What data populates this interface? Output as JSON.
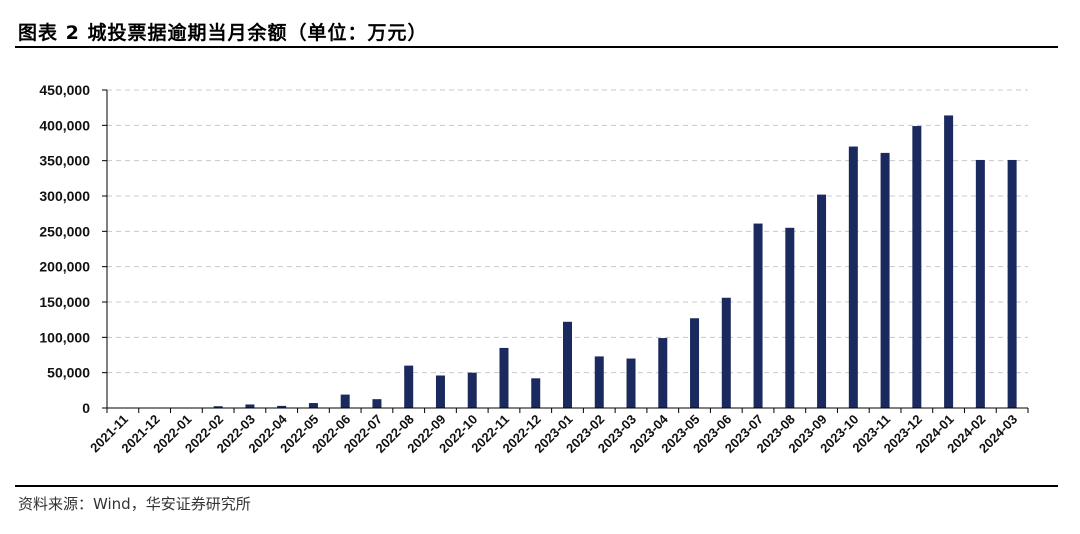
{
  "header": {
    "title": "图表 2  城投票据逾期当月余额（单位：万元）"
  },
  "footer": {
    "source": "资料来源：Wind，华安证券研究所"
  },
  "colors": {
    "bar": "#1b2a5e",
    "grid": "#c8c8c8",
    "axis": "#000000"
  },
  "chart_data": {
    "type": "bar",
    "title": "城投票据逾期当月余额（单位：万元）",
    "xlabel": "",
    "ylabel": "",
    "ylim": [
      0,
      450000
    ],
    "y_ticks": [
      0,
      50000,
      100000,
      150000,
      200000,
      250000,
      300000,
      350000,
      400000,
      450000
    ],
    "y_tick_labels": [
      "0",
      "50,000",
      "100,000",
      "150,000",
      "200,000",
      "250,000",
      "300,000",
      "350,000",
      "400,000",
      "450,000"
    ],
    "grid": true,
    "grid_style": "dashed-horizontal",
    "legend": "none",
    "categories": [
      "2021-11",
      "2021-12",
      "2022-01",
      "2022-02",
      "2022-03",
      "2022-04",
      "2022-05",
      "2022-06",
      "2022-07",
      "2022-08",
      "2022-09",
      "2022-10",
      "2022-11",
      "2022-12",
      "2023-01",
      "2023-02",
      "2023-03",
      "2023-04",
      "2023-05",
      "2023-06",
      "2023-07",
      "2023-08",
      "2023-09",
      "2023-10",
      "2023-11",
      "2023-12",
      "2024-01",
      "2024-02",
      "2024-03"
    ],
    "values": [
      300,
      400,
      600,
      2500,
      5000,
      3000,
      7000,
      19000,
      12500,
      60000,
      46000,
      50000,
      85000,
      42000,
      122000,
      73000,
      70000,
      99000,
      127000,
      156000,
      261000,
      255000,
      302000,
      370000,
      361000,
      399000,
      414000,
      351000,
      351000
    ]
  }
}
